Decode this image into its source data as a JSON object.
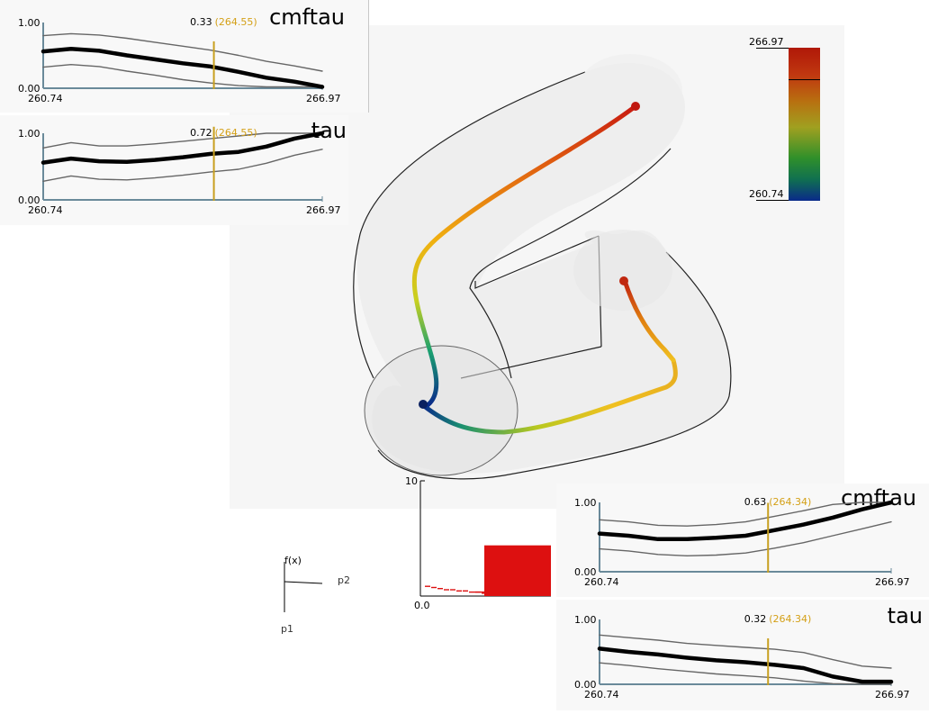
{
  "colorbar": {
    "max_label": "266.97",
    "min_label": "260.74"
  },
  "axes_gizmo": {
    "f_label": "f(x)",
    "p1_label": "p1",
    "p2_label": "p2"
  },
  "histogram": {
    "y_top_label": "10",
    "x_origin_label": "0.0"
  },
  "chart_data": [
    {
      "type": "line",
      "title": "cmftau",
      "xmin_label": "260.74",
      "xmax_label": "266.97",
      "ymin_label": "0.00",
      "ymax_label": "1.00",
      "xlim": [
        260.74,
        266.97
      ],
      "ylim": [
        0,
        1
      ],
      "cursor": {
        "x": 264.55,
        "y": 0.33,
        "value_label": "0.33",
        "x_label": "(264.55)"
      },
      "x": [
        260.74,
        261.36,
        261.99,
        262.61,
        263.23,
        263.86,
        264.48,
        265.1,
        265.72,
        266.35,
        266.97
      ],
      "series": [
        {
          "values": [
            0.56,
            0.6,
            0.57,
            0.5,
            0.44,
            0.38,
            0.33,
            0.25,
            0.16,
            0.1,
            0.02
          ]
        },
        {
          "values": [
            0.8,
            0.83,
            0.81,
            0.76,
            0.7,
            0.64,
            0.58,
            0.5,
            0.41,
            0.34,
            0.26
          ]
        },
        {
          "values": [
            0.32,
            0.36,
            0.33,
            0.26,
            0.2,
            0.13,
            0.08,
            0.04,
            0.02,
            0.02,
            0.02
          ]
        }
      ]
    },
    {
      "type": "line",
      "title": "tau",
      "xmin_label": "260.74",
      "xmax_label": "266.97",
      "ymin_label": "0.00",
      "ymax_label": "1.00",
      "xlim": [
        260.74,
        266.97
      ],
      "ylim": [
        0,
        1
      ],
      "cursor": {
        "x": 264.55,
        "y": 0.72,
        "value_label": "0.72",
        "x_label": "(264.55)"
      },
      "x": [
        260.74,
        261.36,
        261.99,
        262.61,
        263.23,
        263.86,
        264.48,
        265.1,
        265.72,
        266.35,
        266.97
      ],
      "series": [
        {
          "values": [
            0.56,
            0.62,
            0.58,
            0.57,
            0.6,
            0.64,
            0.69,
            0.72,
            0.8,
            0.92,
            1.0
          ]
        },
        {
          "values": [
            0.78,
            0.86,
            0.81,
            0.81,
            0.84,
            0.88,
            0.92,
            0.96,
            1.0,
            1.0,
            1.0
          ]
        },
        {
          "values": [
            0.28,
            0.36,
            0.31,
            0.3,
            0.33,
            0.37,
            0.42,
            0.46,
            0.55,
            0.67,
            0.76
          ]
        }
      ]
    },
    {
      "type": "line",
      "title": "cmftau",
      "xmin_label": "260.74",
      "xmax_label": "266.97",
      "ymin_label": "0.00",
      "ymax_label": "1.00",
      "xlim": [
        260.74,
        266.97
      ],
      "ylim": [
        0,
        1
      ],
      "cursor": {
        "x": 264.34,
        "y": 0.63,
        "value_label": "0.63",
        "x_label": "(264.34)"
      },
      "x": [
        260.74,
        261.36,
        261.99,
        262.61,
        263.23,
        263.86,
        264.48,
        265.1,
        265.72,
        266.35,
        266.97
      ],
      "series": [
        {
          "values": [
            0.55,
            0.52,
            0.47,
            0.47,
            0.49,
            0.52,
            0.6,
            0.68,
            0.78,
            0.9,
            1.0
          ]
        },
        {
          "values": [
            0.75,
            0.72,
            0.67,
            0.66,
            0.68,
            0.72,
            0.8,
            0.88,
            0.97,
            1.0,
            1.0
          ]
        },
        {
          "values": [
            0.33,
            0.3,
            0.25,
            0.23,
            0.24,
            0.27,
            0.34,
            0.42,
            0.52,
            0.62,
            0.72
          ]
        }
      ]
    },
    {
      "type": "line",
      "title": "tau",
      "xmin_label": "260.74",
      "xmax_label": "266.97",
      "ymin_label": "0.00",
      "ymax_label": "1.00",
      "xlim": [
        260.74,
        266.97
      ],
      "ylim": [
        0,
        1
      ],
      "cursor": {
        "x": 264.34,
        "y": 0.32,
        "value_label": "0.32",
        "x_label": "(264.34)"
      },
      "x": [
        260.74,
        261.36,
        261.99,
        262.61,
        263.23,
        263.86,
        264.48,
        265.1,
        265.72,
        266.35,
        266.97
      ],
      "series": [
        {
          "values": [
            0.55,
            0.5,
            0.46,
            0.41,
            0.37,
            0.34,
            0.3,
            0.25,
            0.12,
            0.04,
            0.04
          ]
        },
        {
          "values": [
            0.76,
            0.72,
            0.68,
            0.63,
            0.6,
            0.57,
            0.54,
            0.49,
            0.38,
            0.28,
            0.25
          ]
        },
        {
          "values": [
            0.33,
            0.29,
            0.24,
            0.2,
            0.16,
            0.13,
            0.1,
            0.05,
            0.01,
            0.0,
            0.0
          ]
        }
      ]
    },
    {
      "type": "bar",
      "ylim": [
        0,
        10
      ],
      "values": [
        0.9,
        0.8,
        0.7,
        0.6,
        0.6,
        0.5,
        0.5,
        0.4,
        0.4,
        0.3,
        4.4
      ]
    }
  ]
}
